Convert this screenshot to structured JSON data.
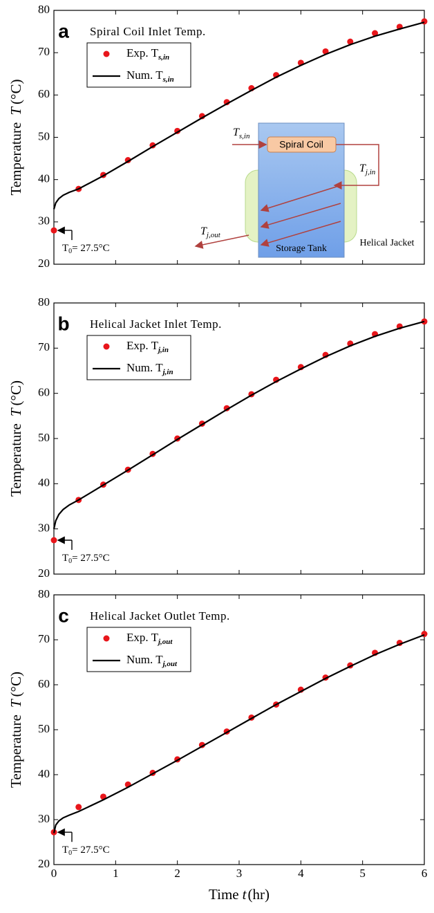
{
  "chart_data": [
    {
      "type": "line",
      "panel_label": "a",
      "title": "Spiral Coil Inlet Temp.",
      "ylabel": [
        "Temperature",
        "T",
        "(°C)"
      ],
      "xlim": [
        0,
        6
      ],
      "xticks": [
        0,
        1,
        2,
        3,
        4,
        5,
        6
      ],
      "xtick_labels": false,
      "ylim": [
        20,
        80
      ],
      "yticks": [
        20,
        30,
        40,
        50,
        60,
        70,
        80
      ],
      "series": [
        {
          "name": "Exp. T",
          "name_subscript": "s,in",
          "style": "marker",
          "color": "#e8161b",
          "x": [
            0,
            0.4,
            0.8,
            1.2,
            1.6,
            2.0,
            2.4,
            2.8,
            3.2,
            3.6,
            4.0,
            4.4,
            4.8,
            5.2,
            5.6,
            6.0
          ],
          "values": [
            28,
            37.8,
            41.1,
            44.6,
            48.1,
            51.5,
            55.0,
            58.3,
            61.6,
            64.7,
            67.6,
            70.3,
            72.6,
            74.6,
            76.1,
            77.4
          ]
        },
        {
          "name": "Num. T",
          "name_subscript": "s,in",
          "style": "line",
          "color": "#000000",
          "x": [
            0,
            0.03,
            0.08,
            0.15,
            0.25,
            0.4,
            0.8,
            1.2,
            1.6,
            2.0,
            2.4,
            2.8,
            3.2,
            3.6,
            4.0,
            4.4,
            4.8,
            5.2,
            5.6,
            6.0
          ],
          "values": [
            33,
            34.5,
            35.5,
            36.3,
            37.0,
            37.8,
            40.9,
            44.3,
            47.8,
            51.2,
            54.6,
            57.9,
            61.1,
            64.2,
            67.0,
            69.6,
            71.9,
            73.9,
            75.6,
            77.2
          ]
        }
      ],
      "annotation": [
        "T",
        "0",
        "= 27.5°C"
      ],
      "inset": {
        "coil": "Spiral Coil",
        "jacket": "Helical Jacket",
        "tank": "Storage Tank",
        "t_s_in": [
          "T",
          "s,in"
        ],
        "t_j_in": [
          "T",
          "j,in"
        ],
        "t_j_out": [
          "T",
          "j,out"
        ]
      }
    },
    {
      "type": "line",
      "panel_label": "b",
      "title": "Helical Jacket Inlet Temp.",
      "ylabel": [
        "Temperature",
        "T",
        "(°C)"
      ],
      "xlim": [
        0,
        6
      ],
      "xticks": [
        0,
        1,
        2,
        3,
        4,
        5,
        6
      ],
      "xtick_labels": false,
      "ylim": [
        20,
        80
      ],
      "yticks": [
        20,
        30,
        40,
        50,
        60,
        70,
        80
      ],
      "series": [
        {
          "name": "Exp. T",
          "name_subscript": "j,in",
          "style": "marker",
          "color": "#e8161b",
          "x": [
            0,
            0.4,
            0.8,
            1.2,
            1.6,
            2.0,
            2.4,
            2.8,
            3.2,
            3.6,
            4.0,
            4.4,
            4.8,
            5.2,
            5.6,
            6.0
          ],
          "values": [
            27.5,
            36.4,
            39.8,
            43.1,
            46.6,
            50.0,
            53.3,
            56.7,
            59.8,
            63.0,
            65.8,
            68.5,
            71.0,
            73.1,
            74.8,
            75.9
          ]
        },
        {
          "name": "Num. T",
          "name_subscript": "j,in",
          "style": "line",
          "color": "#000000",
          "x": [
            0,
            0.03,
            0.08,
            0.15,
            0.25,
            0.4,
            0.8,
            1.2,
            1.6,
            2.0,
            2.4,
            2.8,
            3.2,
            3.6,
            4.0,
            4.4,
            4.8,
            5.2,
            5.6,
            6.0
          ],
          "values": [
            30,
            31.8,
            33.2,
            34.3,
            35.3,
            36.4,
            39.7,
            43.0,
            46.4,
            49.8,
            53.1,
            56.4,
            59.6,
            62.6,
            65.4,
            68.1,
            70.5,
            72.6,
            74.4,
            75.9
          ]
        }
      ],
      "annotation": [
        "T",
        "0",
        "= 27.5°C"
      ]
    },
    {
      "type": "line",
      "panel_label": "c",
      "title": "Helical Jacket Outlet Temp.",
      "ylabel": [
        "Temperature",
        "T",
        "(°C)"
      ],
      "xlabel": [
        "Time",
        "t",
        "(hr)"
      ],
      "xlim": [
        0,
        6
      ],
      "xticks": [
        0,
        1,
        2,
        3,
        4,
        5,
        6
      ],
      "xtick_labels": true,
      "ylim": [
        20,
        80
      ],
      "yticks": [
        20,
        30,
        40,
        50,
        60,
        70,
        80
      ],
      "series": [
        {
          "name": "Exp. T",
          "name_subscript": "j,out",
          "style": "marker",
          "color": "#e8161b",
          "x": [
            0,
            0.4,
            0.8,
            1.2,
            1.6,
            2.0,
            2.4,
            2.8,
            3.2,
            3.6,
            4.0,
            4.4,
            4.8,
            5.2,
            5.6,
            6.0
          ],
          "values": [
            27.2,
            32.8,
            35.1,
            37.8,
            40.4,
            43.4,
            46.6,
            49.6,
            52.7,
            55.6,
            58.9,
            61.6,
            64.3,
            67.1,
            69.3,
            71.3
          ]
        },
        {
          "name": "Num. T",
          "name_subscript": "j,out",
          "style": "line",
          "color": "#000000",
          "x": [
            0,
            0.03,
            0.08,
            0.15,
            0.25,
            0.4,
            0.8,
            1.2,
            1.6,
            2.0,
            2.4,
            2.8,
            3.2,
            3.6,
            4.0,
            4.4,
            4.8,
            5.2,
            5.6,
            6.0
          ],
          "values": [
            27,
            28.8,
            29.7,
            30.4,
            31.0,
            31.8,
            34.4,
            37.2,
            40.2,
            43.2,
            46.3,
            49.4,
            52.5,
            55.6,
            58.5,
            61.4,
            64.1,
            66.7,
            69.0,
            71.1
          ]
        }
      ],
      "annotation": [
        "T",
        "0",
        "= 27.5°C"
      ]
    }
  ]
}
